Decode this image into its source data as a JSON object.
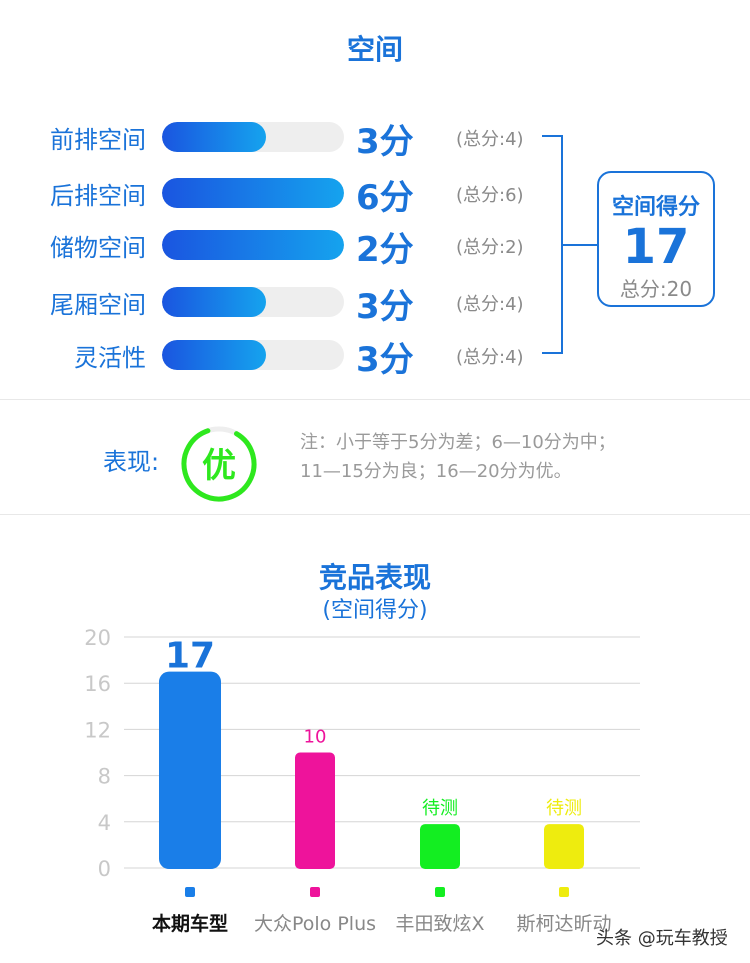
{
  "space": {
    "title": "空间",
    "rows": [
      {
        "label": "前排空间",
        "score": 3,
        "max": 4,
        "value_text": "3分",
        "total_text": "(总分:4)"
      },
      {
        "label": "后排空间",
        "score": 6,
        "max": 6,
        "value_text": "6分",
        "total_text": "(总分:6)"
      },
      {
        "label": "储物空间",
        "score": 2,
        "max": 2,
        "value_text": "2分",
        "total_text": "(总分:2)"
      },
      {
        "label": "尾厢空间",
        "score": 3,
        "max": 4,
        "value_text": "3分",
        "total_text": "(总分:4)"
      },
      {
        "label": "灵活性",
        "score": 3,
        "max": 4,
        "value_text": "3分",
        "total_text": "(总分:4)"
      }
    ],
    "summary": {
      "title": "空间得分",
      "value": "17",
      "total": "总分:20"
    }
  },
  "performance": {
    "label": "表现:",
    "grade": "优",
    "note_line1": "注：小于等于5分为差；6—10分为中；",
    "note_line2": "11—15分为良；16—20分为优。"
  },
  "chart_data": {
    "type": "bar",
    "title": "竞品表现",
    "subtitle": "(空间得分)",
    "categories": [
      "本期车型",
      "大众Polo Plus",
      "丰田致炫X",
      "斯柯达昕动"
    ],
    "values": [
      17,
      10,
      null,
      null
    ],
    "data_labels": [
      "17",
      "10",
      "待测",
      "待测"
    ],
    "colors": [
      "#1a7ee8",
      "#ee139b",
      "#13ee21",
      "#eeec0e"
    ],
    "yticks": [
      0,
      4,
      8,
      12,
      16,
      20
    ],
    "ylim": [
      0,
      20
    ],
    "grid": true
  },
  "colors": {
    "accent": "#1a73d9",
    "grade": "#2ee81e"
  },
  "watermark": "头条 @玩车教授"
}
